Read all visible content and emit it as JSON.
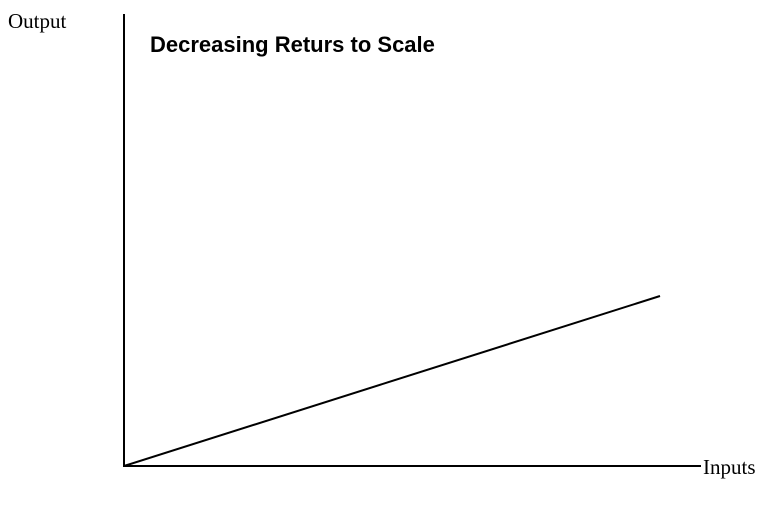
{
  "title": "Decreasing Returs to Scale",
  "y_axis_label": "Output",
  "x_axis_label": "Inputs"
}
